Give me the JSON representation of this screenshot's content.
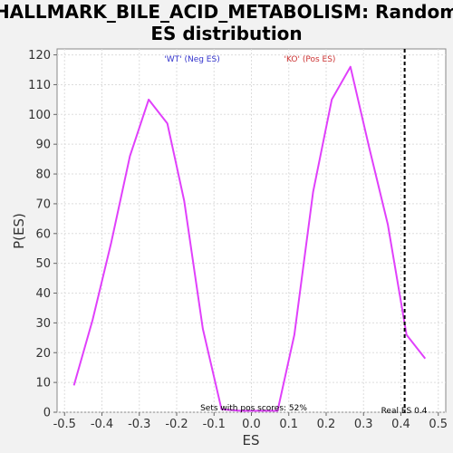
{
  "chart_data": {
    "type": "line",
    "title_lines": [
      "HALLMARK_BILE_ACID_METABOLISM: Random",
      "ES distribution"
    ],
    "xlabel": "ES",
    "ylabel": "P(ES)",
    "xlim": [
      -0.52,
      0.52
    ],
    "ylim": [
      0,
      122
    ],
    "xticks": [
      -0.5,
      -0.4,
      -0.3,
      -0.2,
      -0.1,
      0.0,
      0.1,
      0.2,
      0.3,
      0.4,
      0.5
    ],
    "xtick_labels": [
      "-0.5",
      "-0.4",
      "-0.3",
      "-0.2",
      "-0.1",
      "0.0",
      "0.1",
      "0.2",
      "0.3",
      "0.4",
      "0.5"
    ],
    "yticks": [
      0,
      10,
      20,
      30,
      40,
      50,
      60,
      70,
      80,
      90,
      100,
      110,
      120
    ],
    "ytick_labels": [
      "0",
      "10",
      "20",
      "30",
      "40",
      "50",
      "60",
      "70",
      "80",
      "90",
      "100",
      "110",
      "120"
    ],
    "grid": true,
    "series": [
      {
        "color": "#e040fb",
        "x": [
          -0.475,
          -0.425,
          -0.375,
          -0.325,
          -0.275,
          -0.225,
          -0.18,
          -0.13,
          -0.08,
          -0.03,
          0.02,
          0.07,
          0.115,
          0.165,
          0.215,
          0.265,
          0.315,
          0.365,
          0.415,
          0.465
        ],
        "y": [
          9,
          31,
          57,
          86,
          105,
          97,
          71,
          28,
          1,
          0.5,
          0.5,
          0.5,
          26,
          74,
          105,
          116,
          89,
          63,
          26,
          18
        ]
      }
    ],
    "real_es": 0.41,
    "annotations": {
      "neg_label": "'WT' (Neg ES)",
      "neg_color": "#3333cc",
      "pos_label": "'KO' (Pos ES)",
      "pos_color": "#cc3333",
      "pos_scores": "Sets with pos scores: 52%",
      "real_es_label": "Real ES 0.4"
    }
  }
}
